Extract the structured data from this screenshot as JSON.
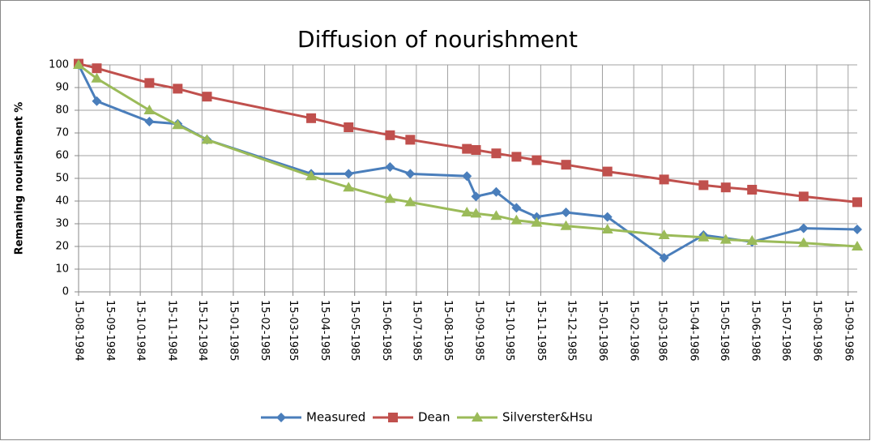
{
  "chart_data": {
    "type": "line",
    "title": "Diffusion of nourishment",
    "y_label": "Remaning  nourishment %",
    "xlim": [
      "15-08-1984",
      "24-09-1986"
    ],
    "xticks": [
      "15-08-1984",
      "15-09-1984",
      "15-10-1984",
      "15-11-1984",
      "15-12-1984",
      "15-01-1985",
      "15-02-1985",
      "15-03-1985",
      "15-04-1985",
      "15-05-1985",
      "15-06-1985",
      "15-07-1985",
      "15-08-1985",
      "15-09-1985",
      "15-10-1985",
      "15-11-1985",
      "15-12-1985",
      "15-01-1986",
      "15-02-1986",
      "15-03-1986",
      "15-04-1986",
      "15-05-1986",
      "15-06-1986",
      "15-07-1986",
      "15-08-1986",
      "15-09-1986"
    ],
    "ylim": [
      0,
      100
    ],
    "yticks": [
      0,
      10,
      20,
      30,
      40,
      50,
      60,
      70,
      80,
      90,
      100
    ],
    "grid": true,
    "legend": "bottom",
    "series": [
      {
        "name": "Measured",
        "color": "#4a7ebb",
        "marker": "diamond",
        "x": [
          "15-08-1984",
          "02-09-1984",
          "24-10-1984",
          "21-11-1984",
          "20-12-1984",
          "02-04-1985",
          "09-05-1985",
          "19-06-1985",
          "09-07-1985",
          "03-09-1985",
          "12-09-1985",
          "02-10-1985",
          "22-10-1985",
          "11-11-1985",
          "10-12-1985",
          "20-01-1986",
          "17-03-1986",
          "25-04-1986",
          "12-06-1986",
          "02-08-1986",
          "24-09-1986"
        ],
        "values": [
          100,
          84,
          75,
          74,
          67,
          52,
          52,
          55,
          52,
          51,
          42,
          44,
          37,
          33,
          35,
          33,
          15,
          25,
          22,
          28,
          27.5
        ]
      },
      {
        "name": "Dean",
        "color": "#c0504d",
        "marker": "square",
        "x": [
          "15-08-1984",
          "02-09-1984",
          "24-10-1984",
          "21-11-1984",
          "20-12-1984",
          "02-04-1985",
          "09-05-1985",
          "19-06-1985",
          "09-07-1985",
          "03-09-1985",
          "12-09-1985",
          "02-10-1985",
          "22-10-1985",
          "11-11-1985",
          "10-12-1985",
          "20-01-1986",
          "17-03-1986",
          "25-04-1986",
          "17-05-1986",
          "12-06-1986",
          "02-08-1986",
          "24-09-1986"
        ],
        "values": [
          100.5,
          98.5,
          92,
          89.5,
          86,
          76.5,
          72.5,
          69,
          67,
          63,
          62.5,
          61,
          59.5,
          58,
          56,
          53,
          49.5,
          47,
          46,
          45,
          42,
          39.5
        ]
      },
      {
        "name": "Silverster&Hsu",
        "color": "#9bbb59",
        "marker": "triangle",
        "x": [
          "15-08-1984",
          "02-09-1984",
          "24-10-1984",
          "21-11-1984",
          "20-12-1984",
          "02-04-1985",
          "09-05-1985",
          "19-06-1985",
          "09-07-1985",
          "03-09-1985",
          "12-09-1985",
          "02-10-1985",
          "22-10-1985",
          "11-11-1985",
          "10-12-1985",
          "20-01-1986",
          "17-03-1986",
          "25-04-1986",
          "17-05-1986",
          "12-06-1986",
          "02-08-1986",
          "24-09-1986"
        ],
        "values": [
          100,
          94,
          80,
          73.5,
          67,
          51,
          46,
          41,
          39.5,
          35,
          34.5,
          33.5,
          31.5,
          30.5,
          29,
          27.5,
          25,
          24,
          23,
          22.5,
          21.5,
          20
        ]
      }
    ]
  }
}
